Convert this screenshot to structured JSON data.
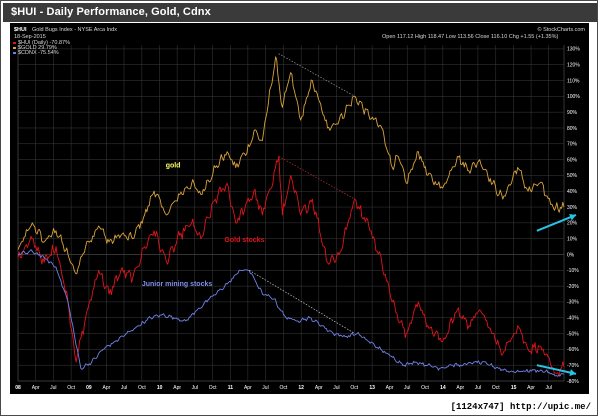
{
  "window": {
    "title": "$HUI - Daily Performance, Gold, Cdnx"
  },
  "chart_header": {
    "symbol": "$HUI",
    "name": "Gold Bugs Index - NYSE Arca Indx",
    "date": "18-Sep-2015",
    "quote": "Open 117.12  High 118.47  Low 113.56  Close 116.10  Chg +1.55 (+1.35%)",
    "source": "© StockCharts.com"
  },
  "watermark": "[1124x747] http://upic.me/",
  "colors": {
    "background": "#000000",
    "gold": "#d9a23a",
    "hui": "#e0141a",
    "cdnx": "#6f80e8",
    "grid": "#3c3c3c",
    "arrow": "#27c3e6",
    "trendline": "#9a9a9a"
  },
  "chart_data": {
    "type": "line",
    "y_unit": "percent change",
    "ylim": [
      -80,
      135
    ],
    "y_ticks": [
      -80,
      -70,
      -60,
      -50,
      -40,
      -30,
      -20,
      -10,
      0,
      10,
      20,
      30,
      40,
      50,
      60,
      70,
      80,
      90,
      100,
      110,
      120,
      130
    ],
    "y_tick_labels": [
      "-80%",
      "-70%",
      "-60%",
      "-50%",
      "-40%",
      "-30%",
      "-20%",
      "-10%",
      "0%",
      "10%",
      "20%",
      "30%",
      "40%",
      "50%",
      "60%",
      "70%",
      "80%",
      "90%",
      "100%",
      "110%",
      "120%",
      "130%"
    ],
    "x_range": [
      "2008-01-01",
      "2015-09-18"
    ],
    "x_ticks": [
      {
        "date": "2008-01-01",
        "label": "08",
        "bold": true
      },
      {
        "date": "2008-04-01",
        "label": "Apr",
        "bold": false
      },
      {
        "date": "2008-07-01",
        "label": "Jul",
        "bold": false
      },
      {
        "date": "2008-10-01",
        "label": "Oct",
        "bold": false
      },
      {
        "date": "2009-01-01",
        "label": "09",
        "bold": true
      },
      {
        "date": "2009-04-01",
        "label": "Apr",
        "bold": false
      },
      {
        "date": "2009-07-01",
        "label": "Jul",
        "bold": false
      },
      {
        "date": "2009-10-01",
        "label": "Oct",
        "bold": false
      },
      {
        "date": "2010-01-01",
        "label": "10",
        "bold": true
      },
      {
        "date": "2010-04-01",
        "label": "Apr",
        "bold": false
      },
      {
        "date": "2010-07-01",
        "label": "Jul",
        "bold": false
      },
      {
        "date": "2010-10-01",
        "label": "Oct",
        "bold": false
      },
      {
        "date": "2011-01-01",
        "label": "11",
        "bold": true
      },
      {
        "date": "2011-04-01",
        "label": "Apr",
        "bold": false
      },
      {
        "date": "2011-07-01",
        "label": "Jul",
        "bold": false
      },
      {
        "date": "2011-10-01",
        "label": "Oct",
        "bold": false
      },
      {
        "date": "2012-01-01",
        "label": "12",
        "bold": true
      },
      {
        "date": "2012-04-01",
        "label": "Apr",
        "bold": false
      },
      {
        "date": "2012-07-01",
        "label": "Jul",
        "bold": false
      },
      {
        "date": "2012-10-01",
        "label": "Oct",
        "bold": false
      },
      {
        "date": "2013-01-01",
        "label": "13",
        "bold": true
      },
      {
        "date": "2013-04-01",
        "label": "Apr",
        "bold": false
      },
      {
        "date": "2013-07-01",
        "label": "Jul",
        "bold": false
      },
      {
        "date": "2013-10-01",
        "label": "Oct",
        "bold": false
      },
      {
        "date": "2014-01-01",
        "label": "14",
        "bold": true
      },
      {
        "date": "2014-04-01",
        "label": "Apr",
        "bold": false
      },
      {
        "date": "2014-07-01",
        "label": "Jul",
        "bold": false
      },
      {
        "date": "2014-10-01",
        "label": "Oct",
        "bold": false
      },
      {
        "date": "2015-01-01",
        "label": "15",
        "bold": true
      },
      {
        "date": "2015-04-01",
        "label": "Apr",
        "bold": false
      },
      {
        "date": "2015-07-01",
        "label": "Jul",
        "bold": false
      }
    ],
    "grid": true,
    "legend_position": "top-left",
    "series": [
      {
        "name": "$GOLD 29.79%",
        "color": "#d9a23a",
        "points": [
          [
            "2008-01-01",
            3
          ],
          [
            "2008-03-15",
            20
          ],
          [
            "2008-05-15",
            8
          ],
          [
            "2008-07-15",
            15
          ],
          [
            "2008-09-15",
            0
          ],
          [
            "2008-10-24",
            -12
          ],
          [
            "2008-12-15",
            5
          ],
          [
            "2009-02-20",
            18
          ],
          [
            "2009-04-15",
            8
          ],
          [
            "2009-06-15",
            12
          ],
          [
            "2009-08-15",
            10
          ],
          [
            "2009-10-15",
            25
          ],
          [
            "2009-12-03",
            40
          ],
          [
            "2010-02-05",
            25
          ],
          [
            "2010-04-15",
            38
          ],
          [
            "2010-06-15",
            45
          ],
          [
            "2010-08-01",
            38
          ],
          [
            "2010-10-15",
            55
          ],
          [
            "2010-12-15",
            65
          ],
          [
            "2011-01-28",
            55
          ],
          [
            "2011-04-15",
            70
          ],
          [
            "2011-05-02",
            78
          ],
          [
            "2011-06-15",
            72
          ],
          [
            "2011-08-22",
            125
          ],
          [
            "2011-09-26",
            93
          ],
          [
            "2011-11-08",
            115
          ],
          [
            "2011-12-29",
            85
          ],
          [
            "2012-02-28",
            110
          ],
          [
            "2012-05-16",
            80
          ],
          [
            "2012-07-15",
            85
          ],
          [
            "2012-10-04",
            100
          ],
          [
            "2012-12-15",
            88
          ],
          [
            "2013-02-20",
            80
          ],
          [
            "2013-04-15",
            55
          ],
          [
            "2013-05-15",
            62
          ],
          [
            "2013-06-27",
            45
          ],
          [
            "2013-08-28",
            65
          ],
          [
            "2013-10-15",
            50
          ],
          [
            "2013-12-31",
            42
          ],
          [
            "2014-03-17",
            62
          ],
          [
            "2014-05-15",
            53
          ],
          [
            "2014-07-10",
            60
          ],
          [
            "2014-09-15",
            45
          ],
          [
            "2014-11-06",
            35
          ],
          [
            "2015-01-22",
            55
          ],
          [
            "2015-03-17",
            40
          ],
          [
            "2015-05-15",
            45
          ],
          [
            "2015-07-24",
            30
          ],
          [
            "2015-09-18",
            30
          ]
        ]
      },
      {
        "name": "$HUI (Daily) -70.87%",
        "color": "#e0141a",
        "points": [
          [
            "2008-01-01",
            -2
          ],
          [
            "2008-03-14",
            10
          ],
          [
            "2008-05-15",
            -5
          ],
          [
            "2008-07-15",
            5
          ],
          [
            "2008-09-15",
            -30
          ],
          [
            "2008-10-27",
            -68
          ],
          [
            "2008-12-15",
            -40
          ],
          [
            "2009-02-20",
            -10
          ],
          [
            "2009-04-15",
            -25
          ],
          [
            "2009-06-15",
            -10
          ],
          [
            "2009-08-15",
            -15
          ],
          [
            "2009-10-15",
            5
          ],
          [
            "2009-12-03",
            15
          ],
          [
            "2010-02-05",
            -5
          ],
          [
            "2010-04-15",
            12
          ],
          [
            "2010-06-15",
            20
          ],
          [
            "2010-08-01",
            10
          ],
          [
            "2010-10-15",
            35
          ],
          [
            "2010-12-15",
            45
          ],
          [
            "2011-01-28",
            20
          ],
          [
            "2011-04-15",
            35
          ],
          [
            "2011-05-02",
            40
          ],
          [
            "2011-06-15",
            25
          ],
          [
            "2011-09-08",
            62
          ],
          [
            "2011-09-26",
            25
          ],
          [
            "2011-11-08",
            50
          ],
          [
            "2011-12-29",
            25
          ],
          [
            "2012-02-28",
            35
          ],
          [
            "2012-05-16",
            -5
          ],
          [
            "2012-07-15",
            0
          ],
          [
            "2012-10-04",
            35
          ],
          [
            "2012-12-15",
            18
          ],
          [
            "2013-02-20",
            -5
          ],
          [
            "2013-04-15",
            -30
          ],
          [
            "2013-06-27",
            -50
          ],
          [
            "2013-08-28",
            -30
          ],
          [
            "2013-10-15",
            -45
          ],
          [
            "2013-12-31",
            -55
          ],
          [
            "2014-03-17",
            -35
          ],
          [
            "2014-05-15",
            -45
          ],
          [
            "2014-07-10",
            -35
          ],
          [
            "2014-09-15",
            -50
          ],
          [
            "2014-11-06",
            -63
          ],
          [
            "2015-01-22",
            -45
          ],
          [
            "2015-03-17",
            -60
          ],
          [
            "2015-05-15",
            -58
          ],
          [
            "2015-08-05",
            -75
          ],
          [
            "2015-09-18",
            -71
          ]
        ]
      },
      {
        "name": "$CDNX -75.54%",
        "color": "#6f80e8",
        "points": [
          [
            "2008-01-01",
            0
          ],
          [
            "2008-03-15",
            2
          ],
          [
            "2008-05-15",
            -2
          ],
          [
            "2008-07-15",
            -8
          ],
          [
            "2008-09-15",
            -30
          ],
          [
            "2008-11-20",
            -72
          ],
          [
            "2009-01-15",
            -68
          ],
          [
            "2009-03-15",
            -60
          ],
          [
            "2009-05-15",
            -55
          ],
          [
            "2009-07-15",
            -50
          ],
          [
            "2009-09-15",
            -45
          ],
          [
            "2009-11-15",
            -40
          ],
          [
            "2010-01-15",
            -38
          ],
          [
            "2010-03-15",
            -40
          ],
          [
            "2010-05-15",
            -42
          ],
          [
            "2010-07-15",
            -35
          ],
          [
            "2010-09-15",
            -28
          ],
          [
            "2010-11-15",
            -22
          ],
          [
            "2011-01-15",
            -15
          ],
          [
            "2011-02-15",
            -10
          ],
          [
            "2011-04-08",
            -10
          ],
          [
            "2011-05-15",
            -18
          ],
          [
            "2011-06-15",
            -25
          ],
          [
            "2011-08-15",
            -28
          ],
          [
            "2011-09-15",
            -35
          ],
          [
            "2011-10-15",
            -40
          ],
          [
            "2011-12-15",
            -42
          ],
          [
            "2012-02-15",
            -40
          ],
          [
            "2012-04-15",
            -45
          ],
          [
            "2012-06-15",
            -50
          ],
          [
            "2012-08-15",
            -52
          ],
          [
            "2012-10-15",
            -50
          ],
          [
            "2012-12-15",
            -55
          ],
          [
            "2013-02-15",
            -60
          ],
          [
            "2013-04-15",
            -65
          ],
          [
            "2013-06-15",
            -70
          ],
          [
            "2013-08-15",
            -68
          ],
          [
            "2013-10-15",
            -70
          ],
          [
            "2013-12-15",
            -72
          ],
          [
            "2014-02-15",
            -70
          ],
          [
            "2014-04-15",
            -70
          ],
          [
            "2014-06-15",
            -68
          ],
          [
            "2014-08-15",
            -69
          ],
          [
            "2014-10-15",
            -72
          ],
          [
            "2014-12-15",
            -74
          ],
          [
            "2015-02-15",
            -74
          ],
          [
            "2015-04-15",
            -73
          ],
          [
            "2015-06-15",
            -74
          ],
          [
            "2015-08-15",
            -77
          ],
          [
            "2015-09-18",
            -75.5
          ]
        ]
      }
    ],
    "trendlines": [
      {
        "series": "gold",
        "from": [
          "2011-09-06",
          127
        ],
        "to": [
          "2012-10-04",
          100
        ],
        "color": "#9a9a9a",
        "style": "dotted"
      },
      {
        "series": "hui",
        "from": [
          "2011-09-08",
          62
        ],
        "to": [
          "2012-10-04",
          35
        ],
        "color": "#c23030",
        "style": "dotted"
      },
      {
        "series": "cdnx",
        "from": [
          "2011-04-08",
          -10
        ],
        "to": [
          "2012-10-04",
          -50
        ],
        "color": "#cfcfcf",
        "style": "dotted"
      }
    ],
    "annotations": [
      {
        "text": "gold",
        "date": "2010-02-01",
        "value": 55,
        "color": "#ffff66"
      },
      {
        "text": "Gold stocks",
        "date": "2010-12-01",
        "value": 8,
        "color": "#e0141a"
      },
      {
        "text": "Junior mining stocks",
        "date": "2009-10-01",
        "value": -20,
        "color": "#7f90f0"
      }
    ],
    "arrows": [
      {
        "target": "gold",
        "from": [
          "2015-05-01",
          15
        ],
        "to": [
          "2015-09-18",
          25
        ],
        "color": "#27c3e6"
      },
      {
        "target": "cdnx",
        "from": [
          "2015-05-01",
          -70
        ],
        "to": [
          "2015-09-18",
          -75.5
        ],
        "color": "#27c3e6"
      }
    ]
  }
}
